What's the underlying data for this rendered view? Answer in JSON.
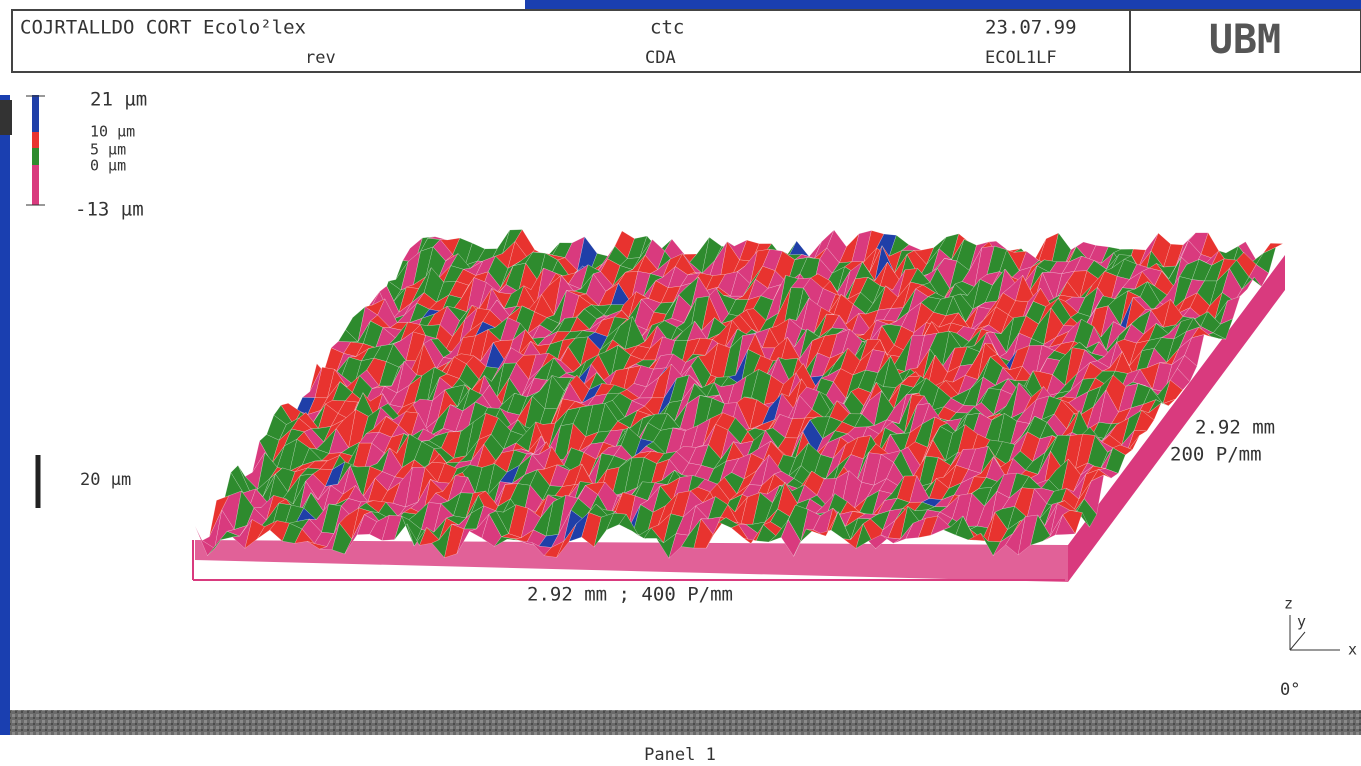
{
  "header": {
    "sample": "COJRTALLDO CORT Ecolo²lex",
    "sample_sub": "rev",
    "code": "ctc",
    "code_sub": "CDA",
    "date": "23.07.99",
    "file": "ECOL1LF",
    "logo": "UBM"
  },
  "legend": {
    "levels": [
      {
        "label": "21 µm",
        "color": "#1f3fa8"
      },
      {
        "label": "10 µm",
        "color": "#e8332f"
      },
      {
        "label": "5 µm",
        "color": "#2e8b2e"
      },
      {
        "label": "0 µm",
        "color": "#d93a7e"
      },
      {
        "label": "-13 µm",
        "color": "#d93a7e"
      }
    ]
  },
  "scale": {
    "z_bar": "20 µm",
    "y_length": "2.92 mm",
    "y_density": "200 P/mm",
    "x_axis": "2.92 mm ; 400 P/mm"
  },
  "axes": {
    "z": "z",
    "y": "y",
    "x": "x",
    "angle": "0°"
  },
  "footer": {
    "panel": "Panel 1"
  }
}
